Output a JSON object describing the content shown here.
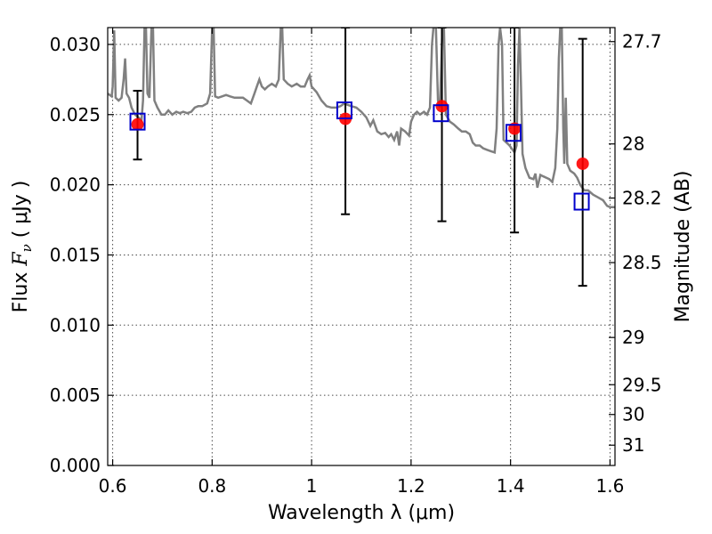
{
  "chart_data": {
    "type": "scatter",
    "xlabel": "Wavelength  λ (μm)",
    "ylabel": "Flux  F_ν  ( μJy )",
    "ylabel_parts": {
      "pre": "Flux  ",
      "sym": "F",
      "sub": "ν",
      "post": "  ( μJy )"
    },
    "y2label": "Magnitude (AB)",
    "xlim": [
      0.59,
      1.61
    ],
    "ylim": [
      0.0,
      0.0312
    ],
    "grid": true,
    "x_ticks": [
      {
        "value": 0.6,
        "label": "0.6"
      },
      {
        "value": 0.8,
        "label": "0.8"
      },
      {
        "value": 1.0,
        "label": "1"
      },
      {
        "value": 1.2,
        "label": "1.2"
      },
      {
        "value": 1.4,
        "label": "1.4"
      },
      {
        "value": 1.6,
        "label": "1.6"
      }
    ],
    "y_ticks": [
      {
        "value": 0.0,
        "label": "0.000"
      },
      {
        "value": 0.005,
        "label": "0.005"
      },
      {
        "value": 0.01,
        "label": "0.010"
      },
      {
        "value": 0.015,
        "label": "0.015"
      },
      {
        "value": 0.02,
        "label": "0.020"
      },
      {
        "value": 0.025,
        "label": "0.025"
      },
      {
        "value": 0.03,
        "label": "0.030"
      }
    ],
    "y2_ticks": [
      {
        "magnitude": 27.7,
        "label": "27.7"
      },
      {
        "magnitude": 28.0,
        "label": "28"
      },
      {
        "magnitude": 28.2,
        "label": "28.2"
      },
      {
        "magnitude": 28.5,
        "label": "28.5"
      },
      {
        "magnitude": 29.0,
        "label": "29"
      },
      {
        "magnitude": 29.5,
        "label": "29.5"
      },
      {
        "magnitude": 30.0,
        "label": "30"
      },
      {
        "magnitude": 31.0,
        "label": "31"
      }
    ],
    "series": [
      {
        "kind": "model-spectrum",
        "color": "#808080",
        "points": [
          [
            0.59,
            0.0265
          ],
          [
            0.598,
            0.0263
          ],
          [
            0.6,
            0.027
          ],
          [
            0.603,
            0.031
          ],
          [
            0.606,
            0.0262
          ],
          [
            0.612,
            0.026
          ],
          [
            0.618,
            0.0262
          ],
          [
            0.622,
            0.0275
          ],
          [
            0.625,
            0.029
          ],
          [
            0.628,
            0.0265
          ],
          [
            0.633,
            0.0262
          ],
          [
            0.638,
            0.0255
          ],
          [
            0.645,
            0.025
          ],
          [
            0.652,
            0.0248
          ],
          [
            0.658,
            0.0246
          ],
          [
            0.661,
            0.026
          ],
          [
            0.664,
            0.0312
          ],
          [
            0.667,
            0.0312
          ],
          [
            0.67,
            0.0265
          ],
          [
            0.674,
            0.0262
          ],
          [
            0.678,
            0.0312
          ],
          [
            0.681,
            0.0312
          ],
          [
            0.684,
            0.026
          ],
          [
            0.69,
            0.0255
          ],
          [
            0.698,
            0.025
          ],
          [
            0.705,
            0.025
          ],
          [
            0.712,
            0.0253
          ],
          [
            0.72,
            0.025
          ],
          [
            0.728,
            0.0252
          ],
          [
            0.735,
            0.0251
          ],
          [
            0.742,
            0.0252
          ],
          [
            0.75,
            0.0251
          ],
          [
            0.758,
            0.0252
          ],
          [
            0.765,
            0.0255
          ],
          [
            0.772,
            0.0256
          ],
          [
            0.78,
            0.0256
          ],
          [
            0.79,
            0.0258
          ],
          [
            0.796,
            0.0265
          ],
          [
            0.8,
            0.0312
          ],
          [
            0.803,
            0.0312
          ],
          [
            0.806,
            0.0263
          ],
          [
            0.812,
            0.0262
          ],
          [
            0.82,
            0.0263
          ],
          [
            0.828,
            0.0264
          ],
          [
            0.836,
            0.0263
          ],
          [
            0.845,
            0.0262
          ],
          [
            0.855,
            0.0262
          ],
          [
            0.862,
            0.0262
          ],
          [
            0.87,
            0.026
          ],
          [
            0.878,
            0.0258
          ],
          [
            0.885,
            0.0265
          ],
          [
            0.89,
            0.027
          ],
          [
            0.895,
            0.0275
          ],
          [
            0.9,
            0.027
          ],
          [
            0.906,
            0.0268
          ],
          [
            0.912,
            0.027
          ],
          [
            0.92,
            0.0272
          ],
          [
            0.928,
            0.027
          ],
          [
            0.934,
            0.0275
          ],
          [
            0.938,
            0.0312
          ],
          [
            0.941,
            0.0312
          ],
          [
            0.944,
            0.0275
          ],
          [
            0.952,
            0.0272
          ],
          [
            0.96,
            0.027
          ],
          [
            0.97,
            0.0272
          ],
          [
            0.978,
            0.027
          ],
          [
            0.986,
            0.027
          ],
          [
            0.992,
            0.0275
          ],
          [
            0.996,
            0.0278
          ],
          [
            1.0,
            0.027
          ],
          [
            1.01,
            0.0266
          ],
          [
            1.02,
            0.026
          ],
          [
            1.03,
            0.0256
          ],
          [
            1.04,
            0.0255
          ],
          [
            1.05,
            0.0255
          ],
          [
            1.058,
            0.0256
          ],
          [
            1.066,
            0.0258
          ],
          [
            1.072,
            0.0257
          ],
          [
            1.08,
            0.0256
          ],
          [
            1.09,
            0.0255
          ],
          [
            1.1,
            0.0252
          ],
          [
            1.11,
            0.0248
          ],
          [
            1.118,
            0.0242
          ],
          [
            1.124,
            0.0246
          ],
          [
            1.132,
            0.0238
          ],
          [
            1.14,
            0.0236
          ],
          [
            1.148,
            0.0237
          ],
          [
            1.155,
            0.0234
          ],
          [
            1.16,
            0.0236
          ],
          [
            1.166,
            0.0232
          ],
          [
            1.172,
            0.0238
          ],
          [
            1.176,
            0.0228
          ],
          [
            1.18,
            0.024
          ],
          [
            1.188,
            0.0238
          ],
          [
            1.196,
            0.0235
          ],
          [
            1.2,
            0.0245
          ],
          [
            1.206,
            0.025
          ],
          [
            1.212,
            0.0252
          ],
          [
            1.218,
            0.025
          ],
          [
            1.226,
            0.0252
          ],
          [
            1.232,
            0.025
          ],
          [
            1.238,
            0.0255
          ],
          [
            1.242,
            0.03
          ],
          [
            1.245,
            0.0312
          ],
          [
            1.25,
            0.0312
          ],
          [
            1.254,
            0.026
          ],
          [
            1.258,
            0.0255
          ],
          [
            1.263,
            0.0312
          ],
          [
            1.266,
            0.0312
          ],
          [
            1.27,
            0.025
          ],
          [
            1.278,
            0.0245
          ],
          [
            1.286,
            0.0243
          ],
          [
            1.295,
            0.024
          ],
          [
            1.302,
            0.0238
          ],
          [
            1.31,
            0.0238
          ],
          [
            1.318,
            0.0236
          ],
          [
            1.324,
            0.023
          ],
          [
            1.33,
            0.0228
          ],
          [
            1.338,
            0.0228
          ],
          [
            1.345,
            0.0226
          ],
          [
            1.352,
            0.0225
          ],
          [
            1.36,
            0.0224
          ],
          [
            1.368,
            0.0223
          ],
          [
            1.372,
            0.024
          ],
          [
            1.376,
            0.03
          ],
          [
            1.379,
            0.0312
          ],
          [
            1.383,
            0.03
          ],
          [
            1.386,
            0.0232
          ],
          [
            1.392,
            0.023
          ],
          [
            1.398,
            0.0228
          ],
          [
            1.404,
            0.0225
          ],
          [
            1.408,
            0.0223
          ],
          [
            1.412,
            0.0228
          ],
          [
            1.415,
            0.0285
          ],
          [
            1.418,
            0.0312
          ],
          [
            1.421,
            0.027
          ],
          [
            1.424,
            0.0222
          ],
          [
            1.43,
            0.0212
          ],
          [
            1.438,
            0.0205
          ],
          [
            1.446,
            0.0204
          ],
          [
            1.45,
            0.0208
          ],
          [
            1.454,
            0.0198
          ],
          [
            1.46,
            0.0207
          ],
          [
            1.466,
            0.0206
          ],
          [
            1.472,
            0.0205
          ],
          [
            1.478,
            0.0204
          ],
          [
            1.484,
            0.0202
          ],
          [
            1.49,
            0.0212
          ],
          [
            1.494,
            0.024
          ],
          [
            1.497,
            0.029
          ],
          [
            1.5,
            0.0312
          ],
          [
            1.503,
            0.0312
          ],
          [
            1.506,
            0.024
          ],
          [
            1.508,
            0.0215
          ],
          [
            1.511,
            0.0262
          ],
          [
            1.514,
            0.0215
          ],
          [
            1.52,
            0.021
          ],
          [
            1.528,
            0.0208
          ],
          [
            1.534,
            0.0205
          ],
          [
            1.54,
            0.02
          ],
          [
            1.548,
            0.0196
          ],
          [
            1.556,
            0.0196
          ],
          [
            1.566,
            0.0193
          ],
          [
            1.576,
            0.0191
          ],
          [
            1.586,
            0.0189
          ],
          [
            1.594,
            0.0185
          ],
          [
            1.6,
            0.0184
          ],
          [
            1.61,
            0.0184
          ]
        ]
      },
      {
        "kind": "observed",
        "color": "#ff0000",
        "marker": "filled-circle",
        "points": [
          {
            "x": 0.65,
            "y": 0.0243,
            "yerr_low": 0.0218,
            "yerr_high": 0.0267
          },
          {
            "x": 1.068,
            "y": 0.0247,
            "yerr_low": 0.0179,
            "yerr_high": 0.0312
          },
          {
            "x": 1.262,
            "y": 0.0256,
            "yerr_low": 0.0174,
            "yerr_high": 0.0312
          },
          {
            "x": 1.408,
            "y": 0.024,
            "yerr_low": 0.0166,
            "yerr_high": 0.0312
          },
          {
            "x": 1.545,
            "y": 0.0215,
            "yerr_low": 0.0128,
            "yerr_high": 0.0304
          }
        ]
      },
      {
        "kind": "model-photometry",
        "color": "#0000cc",
        "marker": "open-square",
        "points": [
          {
            "x": 0.65,
            "y": 0.0245
          },
          {
            "x": 1.066,
            "y": 0.0253
          },
          {
            "x": 1.26,
            "y": 0.0251
          },
          {
            "x": 1.406,
            "y": 0.0237
          },
          {
            "x": 1.543,
            "y": 0.0188
          }
        ]
      }
    ]
  }
}
